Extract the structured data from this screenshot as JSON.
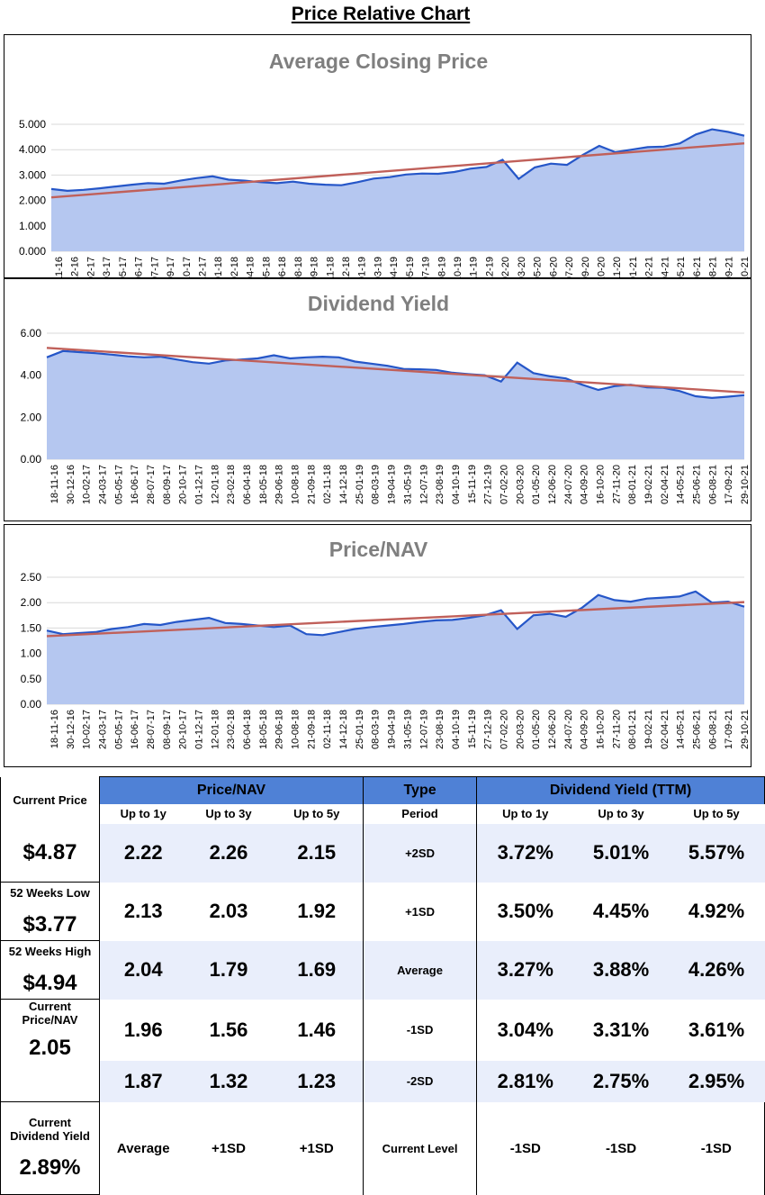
{
  "page_title": "Price Relative Chart",
  "x_labels": [
    "18-11-16",
    "30-12-16",
    "10-02-17",
    "24-03-17",
    "05-05-17",
    "16-06-17",
    "28-07-17",
    "08-09-17",
    "20-10-17",
    "01-12-17",
    "12-01-18",
    "23-02-18",
    "06-04-18",
    "18-05-18",
    "29-06-18",
    "10-08-18",
    "21-09-18",
    "02-11-18",
    "14-12-18",
    "25-01-19",
    "08-03-19",
    "19-04-19",
    "31-05-19",
    "12-07-19",
    "23-08-19",
    "04-10-19",
    "15-11-19",
    "27-12-19",
    "07-02-20",
    "20-03-20",
    "01-05-20",
    "12-06-20",
    "24-07-20",
    "04-09-20",
    "16-10-20",
    "27-11-20",
    "08-01-21",
    "19-02-21",
    "02-04-21",
    "14-05-21",
    "25-06-21",
    "06-08-21",
    "17-09-21",
    "29-10-21"
  ],
  "chart_data": [
    {
      "type": "area",
      "title": "Average Closing Price",
      "ylim": [
        0,
        5
      ],
      "y_ticks": [
        "0.000",
        "1.000",
        "2.000",
        "3.000",
        "4.000",
        "5.000"
      ],
      "series": [
        {
          "name": "Average Closing Price",
          "values": [
            2.45,
            2.38,
            2.42,
            2.48,
            2.55,
            2.62,
            2.68,
            2.66,
            2.78,
            2.88,
            2.95,
            2.82,
            2.78,
            2.72,
            2.68,
            2.74,
            2.66,
            2.62,
            2.6,
            2.72,
            2.86,
            2.92,
            3.02,
            3.06,
            3.05,
            3.12,
            3.25,
            3.32,
            3.6,
            2.85,
            3.3,
            3.45,
            3.4,
            3.8,
            4.15,
            3.9,
            4.0,
            4.1,
            4.12,
            4.25,
            4.6,
            4.8,
            4.7,
            4.55
          ]
        },
        {
          "name": "Trend",
          "values": [
            2.12,
            4.25
          ]
        }
      ]
    },
    {
      "type": "area",
      "title": "Dividend Yield",
      "ylim": [
        0,
        6
      ],
      "y_ticks": [
        "0.00",
        "2.00",
        "4.00",
        "6.00"
      ],
      "series": [
        {
          "name": "Dividend Yield",
          "values": [
            4.85,
            5.15,
            5.1,
            5.05,
            4.98,
            4.9,
            4.85,
            4.88,
            4.75,
            4.62,
            4.55,
            4.7,
            4.75,
            4.8,
            4.95,
            4.8,
            4.85,
            4.88,
            4.85,
            4.65,
            4.55,
            4.45,
            4.3,
            4.28,
            4.25,
            4.12,
            4.05,
            4.0,
            3.7,
            4.6,
            4.1,
            3.95,
            3.85,
            3.55,
            3.3,
            3.48,
            3.55,
            3.42,
            3.4,
            3.25,
            3.0,
            2.92,
            2.98,
            3.05
          ]
        },
        {
          "name": "Trend",
          "values": [
            5.3,
            3.18
          ]
        }
      ]
    },
    {
      "type": "area",
      "title": "Price/NAV",
      "ylim": [
        0,
        2.5
      ],
      "y_ticks": [
        "0.00",
        "0.50",
        "1.00",
        "1.50",
        "2.00",
        "2.50"
      ],
      "series": [
        {
          "name": "Price/NAV",
          "values": [
            1.45,
            1.38,
            1.4,
            1.42,
            1.48,
            1.52,
            1.58,
            1.56,
            1.62,
            1.66,
            1.7,
            1.6,
            1.58,
            1.55,
            1.52,
            1.55,
            1.38,
            1.36,
            1.42,
            1.48,
            1.52,
            1.55,
            1.58,
            1.62,
            1.65,
            1.66,
            1.7,
            1.75,
            1.85,
            1.48,
            1.75,
            1.78,
            1.72,
            1.9,
            2.15,
            2.05,
            2.02,
            2.08,
            2.1,
            2.12,
            2.22,
            2.0,
            2.02,
            1.92
          ]
        },
        {
          "name": "Trend",
          "values": [
            1.34,
            2.01
          ]
        }
      ]
    }
  ],
  "colors": {
    "line": "#2556c8",
    "fill": "#b5c7f0",
    "trend": "#c0605a",
    "header": "#4f81d6",
    "band": "#e9eefb"
  },
  "left_stats": [
    {
      "label": "Current Price",
      "value": "$4.87"
    },
    {
      "label": "52 Weeks Low",
      "value": "$3.77"
    },
    {
      "label": "52 Weeks High",
      "value": "$4.94"
    },
    {
      "label": "Current Price/NAV",
      "value": "2.05"
    },
    {
      "label": "Current Dividend Yield",
      "value": "2.89%"
    }
  ],
  "table": {
    "pnav_header": "Price/NAV",
    "type_header": "Type",
    "dy_header": "Dividend Yield (TTM)",
    "sub_headers": [
      "Up to 1y",
      "Up to 3y",
      "Up to 5y"
    ],
    "period_label": "Period",
    "rows": [
      {
        "type": "+2SD",
        "pnav": [
          "2.22",
          "2.26",
          "2.15"
        ],
        "dy": [
          "3.72%",
          "5.01%",
          "5.57%"
        ]
      },
      {
        "type": "+1SD",
        "pnav": [
          "2.13",
          "2.03",
          "1.92"
        ],
        "dy": [
          "3.50%",
          "4.45%",
          "4.92%"
        ]
      },
      {
        "type": "Average",
        "pnav": [
          "2.04",
          "1.79",
          "1.69"
        ],
        "dy": [
          "3.27%",
          "3.88%",
          "4.26%"
        ]
      },
      {
        "type": "-1SD",
        "pnav": [
          "1.96",
          "1.56",
          "1.46"
        ],
        "dy": [
          "3.04%",
          "3.31%",
          "3.61%"
        ]
      },
      {
        "type": "-2SD",
        "pnav": [
          "1.87",
          "1.32",
          "1.23"
        ],
        "dy": [
          "2.81%",
          "2.75%",
          "2.95%"
        ]
      }
    ],
    "current_level_label": "Current Level",
    "current_pnav": [
      "Average",
      "+1SD",
      "+1SD"
    ],
    "current_dy": [
      "-1SD",
      "-1SD",
      "-1SD"
    ]
  }
}
